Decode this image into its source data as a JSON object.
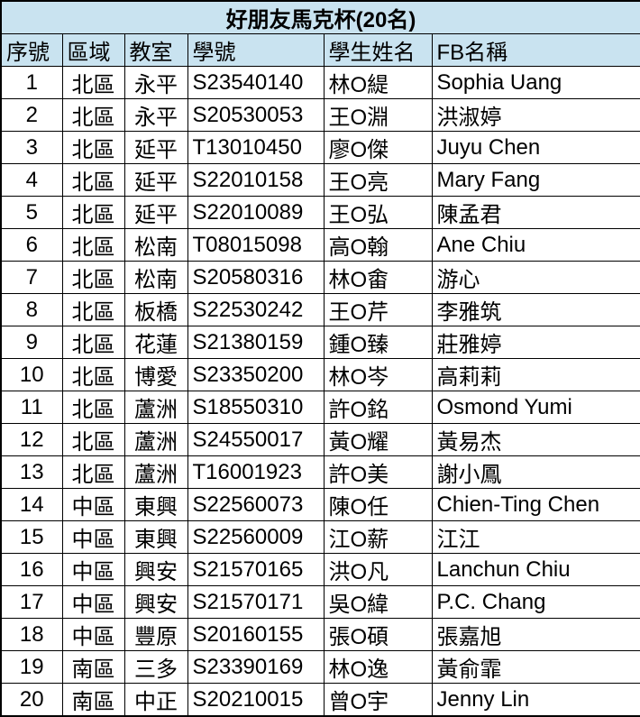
{
  "title": "好朋友馬克杯(20名)",
  "columns": [
    "序號",
    "區域",
    "教室",
    "學號",
    "學生姓名",
    "FB名稱"
  ],
  "column_keys": [
    "no",
    "region",
    "classroom",
    "student-id",
    "student-name",
    "fb-name"
  ],
  "rows": [
    [
      "1",
      "北區",
      "永平",
      "S23540140",
      "林O緹",
      "Sophia Uang"
    ],
    [
      "2",
      "北區",
      "永平",
      "S20530053",
      "王O淵",
      "洪淑婷"
    ],
    [
      "3",
      "北區",
      "延平",
      "T13010450",
      "廖O傑",
      "Juyu Chen"
    ],
    [
      "4",
      "北區",
      "延平",
      "S22010158",
      "王O亮",
      "Mary Fang"
    ],
    [
      "5",
      "北區",
      "延平",
      "S22010089",
      "王O弘",
      "陳孟君"
    ],
    [
      "6",
      "北區",
      "松南",
      "T08015098",
      "高O翰",
      "Ane Chiu"
    ],
    [
      "7",
      "北區",
      "松南",
      "S20580316",
      "林O畬",
      "游心"
    ],
    [
      "8",
      "北區",
      "板橋",
      "S22530242",
      "王O芹",
      "李雅筑"
    ],
    [
      "9",
      "北區",
      "花蓮",
      "S21380159",
      "鍾O臻",
      "莊雅婷"
    ],
    [
      "10",
      "北區",
      "博愛",
      "S23350200",
      "林O岑",
      "高莉莉"
    ],
    [
      "11",
      "北區",
      "蘆洲",
      "S18550310",
      "許O銘",
      "Osmond Yumi"
    ],
    [
      "12",
      "北區",
      "蘆洲",
      "S24550017",
      "黃O耀",
      "黃易杰"
    ],
    [
      "13",
      "北區",
      "蘆洲",
      "T16001923",
      "許O美",
      "謝小鳳"
    ],
    [
      "14",
      "中區",
      "東興",
      "S22560073",
      "陳O任",
      "Chien-Ting Chen"
    ],
    [
      "15",
      "中區",
      "東興",
      "S22560009",
      "江O薪",
      "江江"
    ],
    [
      "16",
      "中區",
      "興安",
      "S21570165",
      "洪O凡",
      "Lanchun Chiu"
    ],
    [
      "17",
      "中區",
      "興安",
      "S21570171",
      "吳O緯",
      "P.C. Chang"
    ],
    [
      "18",
      "中區",
      "豐原",
      "S20160155",
      "張O碩",
      "張嘉旭"
    ],
    [
      "19",
      "南區",
      "三多",
      "S23390169",
      "林O逸",
      "黃俞霏"
    ],
    [
      "20",
      "南區",
      "中正",
      "S20210015",
      "曾O宇",
      "Jenny Lin"
    ]
  ],
  "colors": {
    "header_bg": "#c9e3f0",
    "border": "#000000",
    "row_bg": "#ffffff",
    "text": "#000000"
  }
}
